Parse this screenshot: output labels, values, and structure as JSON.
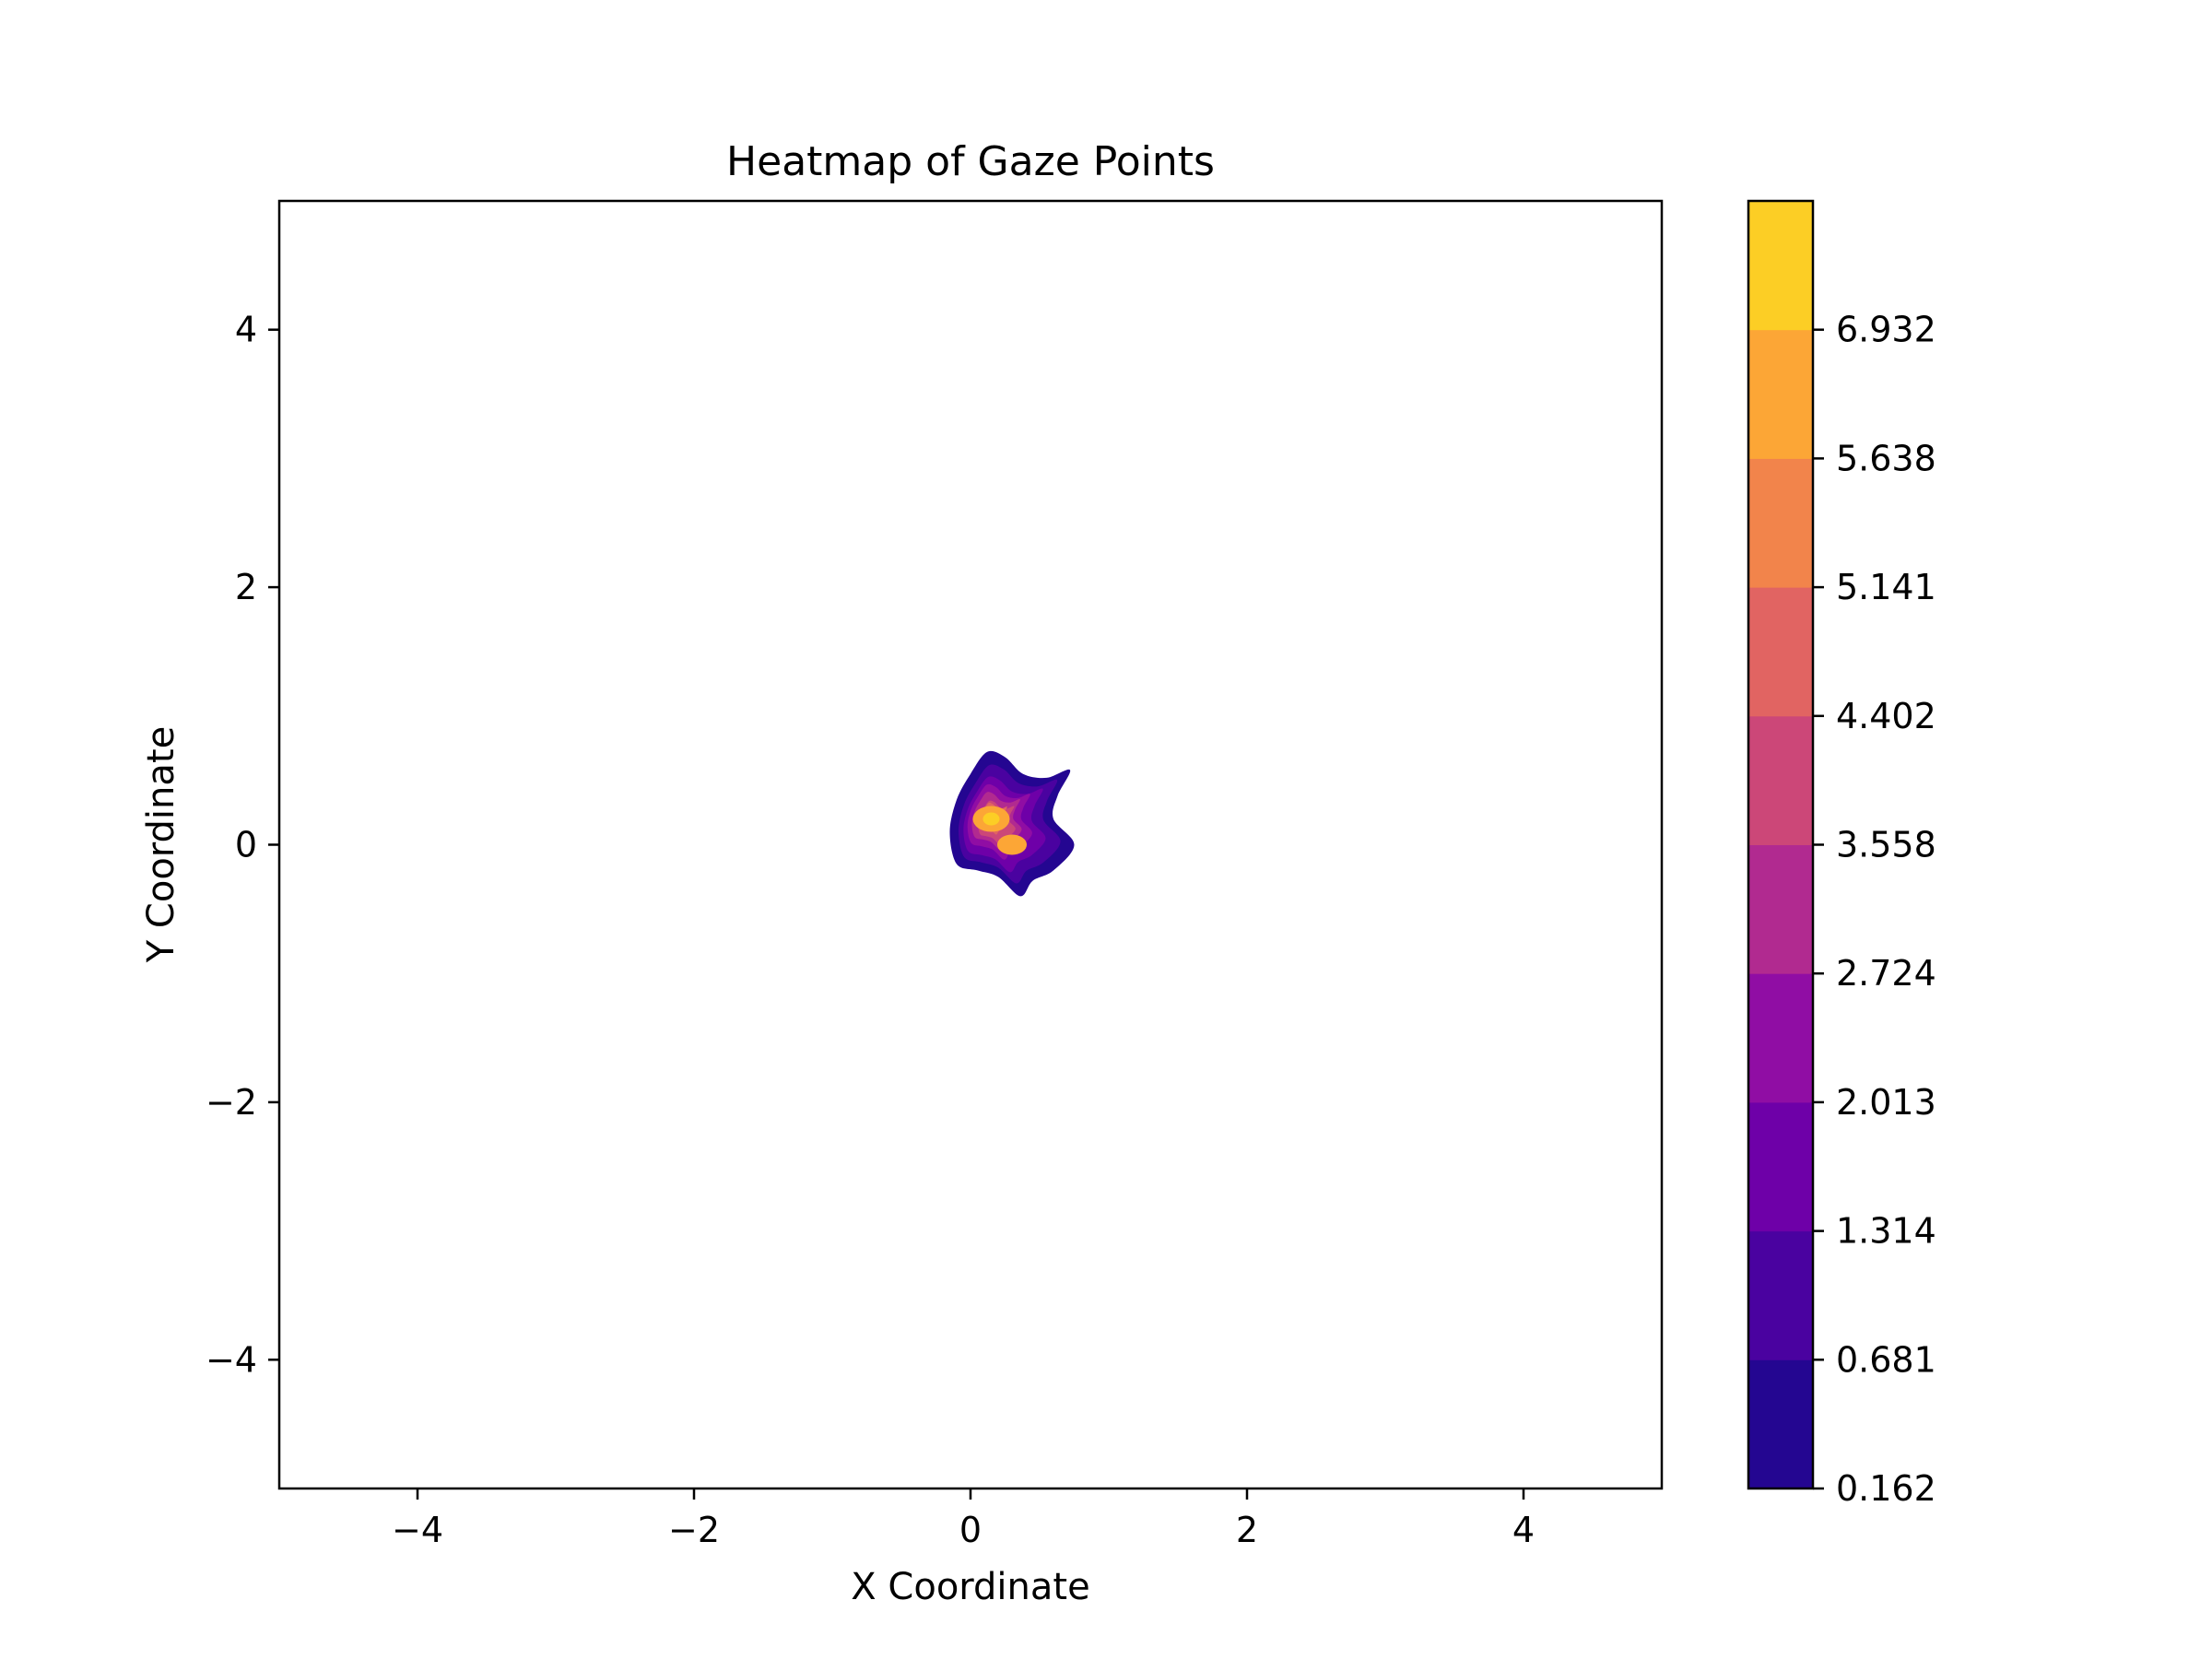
{
  "chart_data": {
    "type": "heatmap",
    "subtype": "filled-contour",
    "title": "Heatmap of Gaze Points",
    "xlabel": "X Coordinate",
    "ylabel": "Y Coordinate",
    "xlim": [
      -5,
      5
    ],
    "ylim": [
      -5,
      5
    ],
    "xticks": [
      -4,
      -2,
      0,
      2,
      4
    ],
    "yticks": [
      -4,
      -2,
      0,
      2,
      4
    ],
    "xtick_labels": [
      "−4",
      "−2",
      "0",
      "2",
      "4"
    ],
    "ytick_labels": [
      "−4",
      "−2",
      "0",
      "2",
      "4"
    ],
    "colormap": "plasma",
    "colorbar": {
      "levels": [
        0.162,
        0.681,
        1.314,
        2.013,
        2.724,
        3.558,
        4.402,
        5.141,
        5.638,
        6.932
      ],
      "labels": [
        "0.162",
        "0.681",
        "1.314",
        "2.013",
        "2.724",
        "3.558",
        "4.402",
        "5.141",
        "5.638",
        "6.932"
      ],
      "colors": [
        "#240691",
        "#4a02a0",
        "#6e00a8",
        "#900da4",
        "#b12a90",
        "#cc4778",
        "#e16462",
        "#f2844b",
        "#fca636",
        "#fcce25"
      ]
    },
    "hotspot": {
      "center": [
        0.2,
        0.15
      ],
      "peak_points": [
        [
          0.15,
          0.2
        ],
        [
          0.3,
          0.0
        ]
      ],
      "approx_extent_x": [
        -0.15,
        0.75
      ],
      "approx_extent_y": [
        -0.4,
        0.75
      ]
    },
    "grid": false
  }
}
